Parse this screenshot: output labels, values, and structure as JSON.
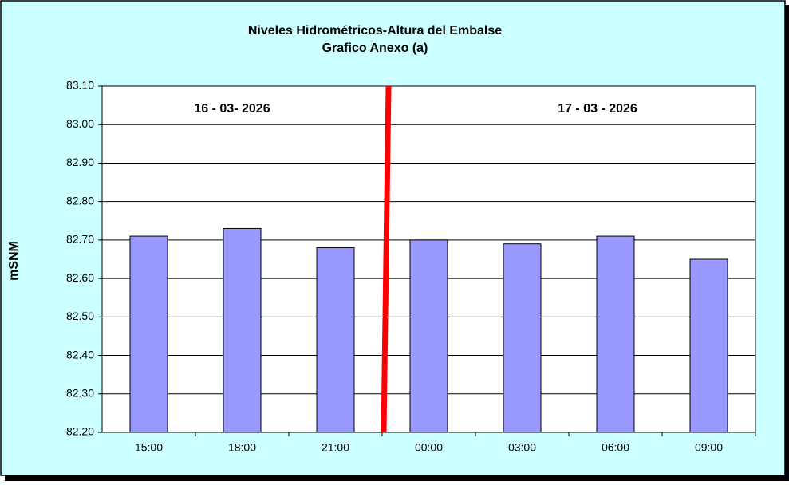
{
  "chart_data": {
    "type": "bar",
    "title": "Niveles Hidrométricos-Altura del Embalse",
    "subtitle": "Grafico Anexo (a)",
    "y_label": "mSNM",
    "annotations": [
      "16 - 03- 2026",
      "17 - 03 - 2026"
    ],
    "categories": [
      "15:00",
      "18:00",
      "21:00",
      "00:00",
      "03:00",
      "06:00",
      "09:00"
    ],
    "values": [
      82.71,
      82.73,
      82.68,
      82.7,
      82.69,
      82.71,
      82.65
    ],
    "color": "#9999ff",
    "ylim": [
      82.2,
      83.1
    ],
    "yticks": [
      {
        "value": 82.2,
        "label": "82.20"
      },
      {
        "value": 82.3,
        "label": "82.30"
      },
      {
        "value": 82.4,
        "label": "82.40"
      },
      {
        "value": 82.5,
        "label": "82.50"
      },
      {
        "value": 82.6,
        "label": "82.60"
      },
      {
        "value": 82.7,
        "label": "82.70"
      },
      {
        "value": 82.8,
        "label": "82.80"
      },
      {
        "value": 82.9,
        "label": "82.90"
      },
      {
        "value": 83.0,
        "label": "83.00"
      },
      {
        "value": 83.1,
        "label": "83.10"
      }
    ],
    "grid": true
  }
}
